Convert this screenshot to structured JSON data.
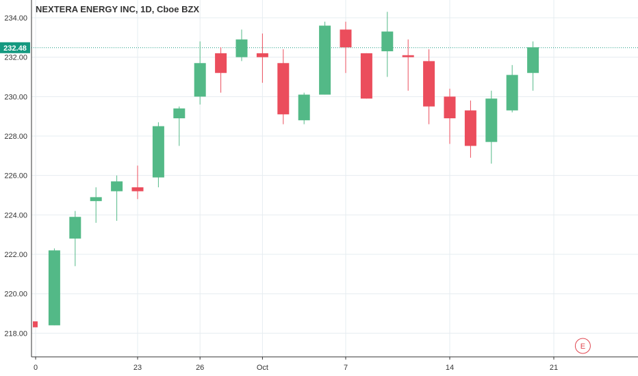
{
  "chart_data": {
    "type": "candlestick",
    "title": "NEXTERA ENERGY INC, 1D, Cboe BZX",
    "ylim": [
      216.8,
      234.9
    ],
    "yticks": [
      218,
      220,
      222,
      224,
      226,
      228,
      230,
      232,
      234
    ],
    "ytick_labels": [
      "218.00",
      "220.00",
      "222.00",
      "224.00",
      "226.00",
      "228.00",
      "230.00",
      "232.00",
      "234.00"
    ],
    "last_price": 232.48,
    "last_price_label": "232.48",
    "x_ticks": [
      {
        "index": 0.1,
        "label": "0"
      },
      {
        "index": 5,
        "label": "23"
      },
      {
        "index": 8,
        "label": "26"
      },
      {
        "index": 11,
        "label": "Oct"
      },
      {
        "index": 15,
        "label": "7"
      },
      {
        "index": 20,
        "label": "14"
      },
      {
        "index": 25,
        "label": "21"
      }
    ],
    "colors": {
      "up": "#53b987",
      "down": "#eb4d5c",
      "grid": "#e6ecf0",
      "last_line": "#159980"
    },
    "earnings_marker": {
      "index": 26,
      "label": "E",
      "color": "#e0454f"
    },
    "candles": [
      {
        "open": 218.6,
        "high": 218.6,
        "low": 218.3,
        "close": 218.3
      },
      {
        "open": 218.4,
        "high": 222.3,
        "low": 218.4,
        "close": 222.2
      },
      {
        "open": 222.8,
        "high": 224.2,
        "low": 221.4,
        "close": 223.9
      },
      {
        "open": 224.7,
        "high": 225.4,
        "low": 223.6,
        "close": 224.9
      },
      {
        "open": 225.2,
        "high": 226.0,
        "low": 223.7,
        "close": 225.7
      },
      {
        "open": 225.4,
        "high": 226.5,
        "low": 224.8,
        "close": 225.2
      },
      {
        "open": 225.9,
        "high": 228.7,
        "low": 225.4,
        "close": 228.5
      },
      {
        "open": 228.9,
        "high": 229.5,
        "low": 227.5,
        "close": 229.4
      },
      {
        "open": 230.0,
        "high": 232.8,
        "low": 229.6,
        "close": 231.7
      },
      {
        "open": 232.2,
        "high": 232.5,
        "low": 230.2,
        "close": 231.2
      },
      {
        "open": 232.0,
        "high": 233.4,
        "low": 231.8,
        "close": 232.9
      },
      {
        "open": 232.2,
        "high": 233.2,
        "low": 230.7,
        "close": 232.0
      },
      {
        "open": 231.7,
        "high": 232.4,
        "low": 228.6,
        "close": 229.1
      },
      {
        "open": 228.8,
        "high": 230.2,
        "low": 228.6,
        "close": 230.1
      },
      {
        "open": 230.1,
        "high": 233.8,
        "low": 230.1,
        "close": 233.6
      },
      {
        "open": 233.4,
        "high": 233.8,
        "low": 231.2,
        "close": 232.5
      },
      {
        "open": 232.2,
        "high": 232.2,
        "low": 229.9,
        "close": 229.9
      },
      {
        "open": 232.3,
        "high": 234.3,
        "low": 231.0,
        "close": 233.3
      },
      {
        "open": 232.1,
        "high": 232.9,
        "low": 230.3,
        "close": 232.0
      },
      {
        "open": 231.8,
        "high": 232.4,
        "low": 228.6,
        "close": 229.5
      },
      {
        "open": 230.0,
        "high": 230.4,
        "low": 227.6,
        "close": 228.9
      },
      {
        "open": 229.3,
        "high": 229.8,
        "low": 226.9,
        "close": 227.5
      },
      {
        "open": 227.7,
        "high": 230.3,
        "low": 226.6,
        "close": 229.9
      },
      {
        "open": 229.3,
        "high": 231.6,
        "low": 229.2,
        "close": 231.1
      },
      {
        "open": 231.2,
        "high": 232.8,
        "low": 230.3,
        "close": 232.5
      }
    ]
  }
}
